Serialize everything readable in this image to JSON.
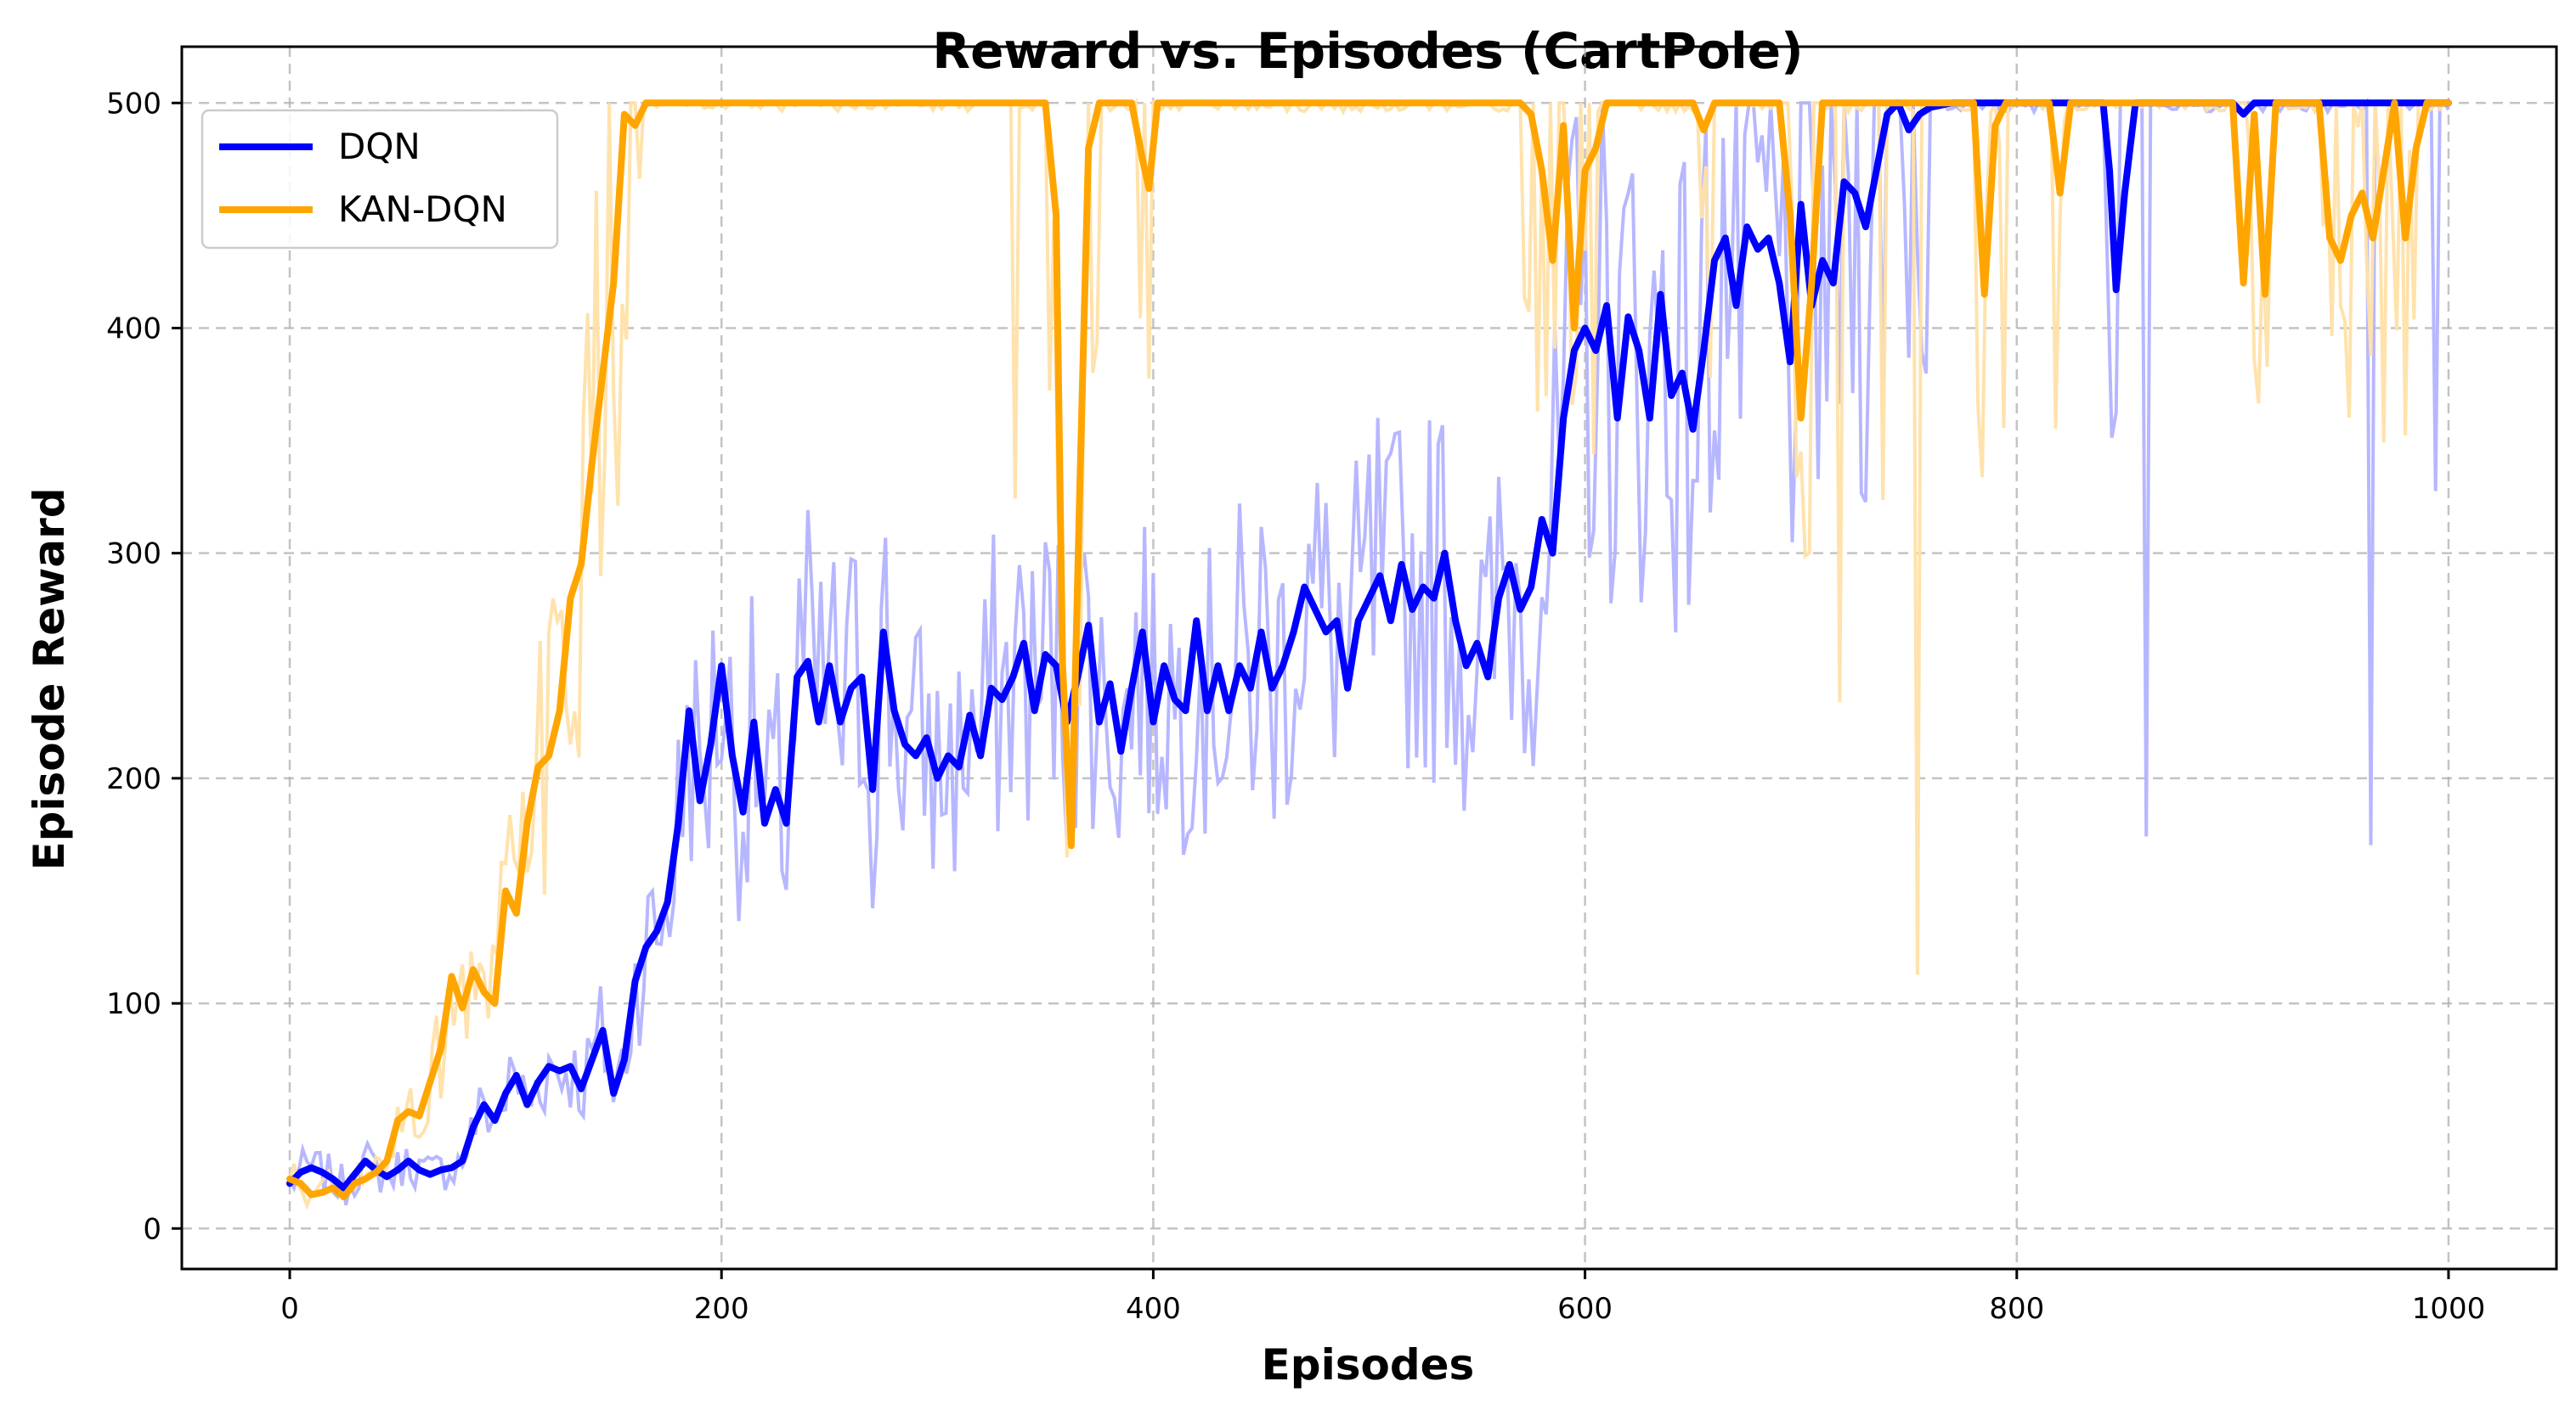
{
  "chart_data": {
    "type": "line",
    "title": "Reward vs. Episodes (CartPole)",
    "xlabel": "Episodes",
    "ylabel": "Episode Reward",
    "xlim": [
      -50,
      1050
    ],
    "ylim": [
      -18,
      525
    ],
    "xticks": [
      0,
      200,
      400,
      600,
      800,
      1000
    ],
    "yticks": [
      0,
      100,
      200,
      300,
      400,
      500
    ],
    "grid": true,
    "legend_position": "top-left",
    "series": [
      {
        "name": "DQN",
        "color": "#0000ff",
        "raw_color": "#b3b3ff",
        "smoothed": [
          [
            0,
            20
          ],
          [
            5,
            25
          ],
          [
            10,
            27
          ],
          [
            15,
            25
          ],
          [
            20,
            22
          ],
          [
            25,
            18
          ],
          [
            30,
            24
          ],
          [
            35,
            30
          ],
          [
            40,
            26
          ],
          [
            45,
            23
          ],
          [
            50,
            26
          ],
          [
            55,
            30
          ],
          [
            60,
            26
          ],
          [
            65,
            24
          ],
          [
            70,
            26
          ],
          [
            75,
            27
          ],
          [
            80,
            30
          ],
          [
            85,
            45
          ],
          [
            90,
            55
          ],
          [
            95,
            48
          ],
          [
            100,
            60
          ],
          [
            105,
            68
          ],
          [
            110,
            55
          ],
          [
            115,
            65
          ],
          [
            120,
            72
          ],
          [
            125,
            70
          ],
          [
            130,
            72
          ],
          [
            135,
            62
          ],
          [
            140,
            75
          ],
          [
            145,
            88
          ],
          [
            150,
            60
          ],
          [
            155,
            75
          ],
          [
            160,
            110
          ],
          [
            165,
            125
          ],
          [
            170,
            132
          ],
          [
            175,
            145
          ],
          [
            180,
            180
          ],
          [
            185,
            230
          ],
          [
            190,
            190
          ],
          [
            195,
            215
          ],
          [
            200,
            250
          ],
          [
            205,
            210
          ],
          [
            210,
            185
          ],
          [
            215,
            225
          ],
          [
            220,
            180
          ],
          [
            225,
            195
          ],
          [
            230,
            180
          ],
          [
            235,
            245
          ],
          [
            240,
            252
          ],
          [
            245,
            225
          ],
          [
            250,
            250
          ],
          [
            255,
            225
          ],
          [
            260,
            240
          ],
          [
            265,
            245
          ],
          [
            270,
            195
          ],
          [
            275,
            265
          ],
          [
            280,
            230
          ],
          [
            285,
            215
          ],
          [
            290,
            210
          ],
          [
            295,
            218
          ],
          [
            300,
            200
          ],
          [
            305,
            210
          ],
          [
            310,
            205
          ],
          [
            315,
            228
          ],
          [
            320,
            210
          ],
          [
            325,
            240
          ],
          [
            330,
            235
          ],
          [
            335,
            245
          ],
          [
            340,
            260
          ],
          [
            345,
            230
          ],
          [
            350,
            255
          ],
          [
            355,
            250
          ],
          [
            360,
            225
          ],
          [
            365,
            245
          ],
          [
            370,
            268
          ],
          [
            375,
            225
          ],
          [
            380,
            242
          ],
          [
            385,
            212
          ],
          [
            390,
            240
          ],
          [
            395,
            265
          ],
          [
            400,
            225
          ],
          [
            405,
            250
          ],
          [
            410,
            235
          ],
          [
            415,
            230
          ],
          [
            420,
            270
          ],
          [
            425,
            230
          ],
          [
            430,
            250
          ],
          [
            435,
            230
          ],
          [
            440,
            250
          ],
          [
            445,
            240
          ],
          [
            450,
            265
          ],
          [
            455,
            240
          ],
          [
            460,
            250
          ],
          [
            465,
            265
          ],
          [
            470,
            285
          ],
          [
            475,
            275
          ],
          [
            480,
            265
          ],
          [
            485,
            270
          ],
          [
            490,
            240
          ],
          [
            495,
            270
          ],
          [
            500,
            280
          ],
          [
            505,
            290
          ],
          [
            510,
            270
          ],
          [
            515,
            295
          ],
          [
            520,
            275
          ],
          [
            525,
            285
          ],
          [
            530,
            280
          ],
          [
            535,
            300
          ],
          [
            540,
            270
          ],
          [
            545,
            250
          ],
          [
            550,
            260
          ],
          [
            555,
            245
          ],
          [
            560,
            280
          ],
          [
            565,
            295
          ],
          [
            570,
            275
          ],
          [
            575,
            285
          ],
          [
            580,
            315
          ],
          [
            585,
            300
          ],
          [
            590,
            360
          ],
          [
            595,
            390
          ],
          [
            600,
            400
          ],
          [
            605,
            390
          ],
          [
            610,
            410
          ],
          [
            615,
            360
          ],
          [
            620,
            405
          ],
          [
            625,
            390
          ],
          [
            630,
            360
          ],
          [
            635,
            415
          ],
          [
            640,
            370
          ],
          [
            645,
            380
          ],
          [
            650,
            355
          ],
          [
            655,
            390
          ],
          [
            660,
            430
          ],
          [
            665,
            440
          ],
          [
            670,
            410
          ],
          [
            675,
            445
          ],
          [
            680,
            435
          ],
          [
            685,
            440
          ],
          [
            690,
            420
          ],
          [
            695,
            385
          ],
          [
            700,
            455
          ],
          [
            705,
            410
          ],
          [
            710,
            430
          ],
          [
            715,
            420
          ],
          [
            720,
            465
          ],
          [
            725,
            460
          ],
          [
            730,
            445
          ],
          [
            735,
            470
          ],
          [
            740,
            495
          ],
          [
            745,
            500
          ],
          [
            750,
            488
          ],
          [
            755,
            495
          ],
          [
            760,
            498
          ],
          [
            770,
            500
          ],
          [
            790,
            500
          ],
          [
            800,
            500
          ],
          [
            840,
            500
          ],
          [
            843,
            470
          ],
          [
            846,
            417
          ],
          [
            850,
            460
          ],
          [
            855,
            500
          ],
          [
            900,
            500
          ],
          [
            905,
            495
          ],
          [
            910,
            500
          ],
          [
            1000,
            500
          ]
        ]
      },
      {
        "name": "KAN-DQN",
        "color": "#ffa500",
        "raw_color": "#ffe0a8",
        "smoothed": [
          [
            0,
            22
          ],
          [
            5,
            20
          ],
          [
            10,
            15
          ],
          [
            15,
            16
          ],
          [
            20,
            18
          ],
          [
            25,
            14
          ],
          [
            30,
            20
          ],
          [
            35,
            22
          ],
          [
            40,
            25
          ],
          [
            45,
            30
          ],
          [
            50,
            48
          ],
          [
            55,
            52
          ],
          [
            60,
            50
          ],
          [
            65,
            65
          ],
          [
            70,
            80
          ],
          [
            75,
            112
          ],
          [
            80,
            98
          ],
          [
            85,
            115
          ],
          [
            90,
            105
          ],
          [
            95,
            100
          ],
          [
            100,
            150
          ],
          [
            105,
            140
          ],
          [
            110,
            180
          ],
          [
            115,
            205
          ],
          [
            120,
            210
          ],
          [
            125,
            230
          ],
          [
            130,
            280
          ],
          [
            135,
            295
          ],
          [
            140,
            340
          ],
          [
            145,
            380
          ],
          [
            150,
            420
          ],
          [
            155,
            495
          ],
          [
            160,
            490
          ],
          [
            165,
            500
          ],
          [
            170,
            500
          ],
          [
            350,
            500
          ],
          [
            355,
            450
          ],
          [
            358,
            250
          ],
          [
            362,
            170
          ],
          [
            366,
            330
          ],
          [
            370,
            480
          ],
          [
            375,
            500
          ],
          [
            380,
            500
          ],
          [
            390,
            500
          ],
          [
            395,
            475
          ],
          [
            398,
            462
          ],
          [
            402,
            500
          ],
          [
            410,
            500
          ],
          [
            570,
            500
          ],
          [
            575,
            495
          ],
          [
            580,
            470
          ],
          [
            585,
            430
          ],
          [
            590,
            490
          ],
          [
            595,
            400
          ],
          [
            600,
            470
          ],
          [
            605,
            480
          ],
          [
            610,
            500
          ],
          [
            650,
            500
          ],
          [
            655,
            488
          ],
          [
            660,
            500
          ],
          [
            690,
            500
          ],
          [
            695,
            450
          ],
          [
            700,
            360
          ],
          [
            705,
            420
          ],
          [
            710,
            500
          ],
          [
            780,
            500
          ],
          [
            785,
            415
          ],
          [
            790,
            490
          ],
          [
            795,
            500
          ],
          [
            815,
            500
          ],
          [
            820,
            460
          ],
          [
            825,
            500
          ],
          [
            900,
            500
          ],
          [
            905,
            420
          ],
          [
            910,
            495
          ],
          [
            915,
            415
          ],
          [
            920,
            500
          ],
          [
            940,
            500
          ],
          [
            945,
            440
          ],
          [
            950,
            430
          ],
          [
            955,
            450
          ],
          [
            960,
            460
          ],
          [
            965,
            440
          ],
          [
            970,
            470
          ],
          [
            975,
            500
          ],
          [
            980,
            440
          ],
          [
            985,
            480
          ],
          [
            990,
            500
          ],
          [
            1000,
            500
          ]
        ]
      }
    ]
  }
}
